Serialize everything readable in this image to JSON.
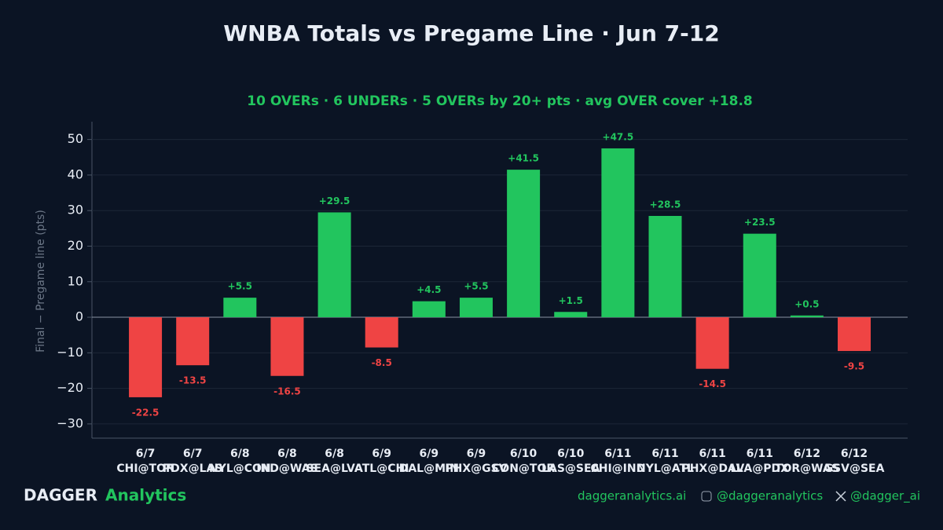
{
  "chart_data": {
    "type": "bar",
    "title": "WNBA Totals vs Pregame Line · Jun 7-12",
    "subtitle": "10 OVERs · 6 UNDERs · 5 OVERs by 20+ pts · avg OVER cover +18.8",
    "y_label": "Final − Pregame line (pts)",
    "categories": [
      "6/7",
      "6/7",
      "6/8",
      "6/8",
      "6/8",
      "6/9",
      "6/9",
      "6/9",
      "6/10",
      "6/10",
      "6/11",
      "6/11",
      "6/11",
      "6/11",
      "6/12",
      "6/12"
    ],
    "matchups": [
      "CHI@TOR",
      "PDX@LAS",
      "NYL@CON",
      "IND@WAS",
      "SEA@LVA",
      "ATL@CHI",
      "DAL@MIN",
      "PHX@GSV",
      "CON@TOR",
      "LAS@SEA",
      "CHI@IND",
      "NYL@ATL",
      "PHX@DAL",
      "LVA@PDX",
      "TOR@WAS",
      "GSV@SEA"
    ],
    "values": [
      -22.5,
      -13.5,
      5.5,
      -16.5,
      29.5,
      -8.5,
      4.5,
      5.5,
      41.5,
      1.5,
      47.5,
      28.5,
      -14.5,
      23.5,
      0.5,
      -9.5
    ],
    "value_labels": [
      "-22.5",
      "-13.5",
      "+5.5",
      "-16.5",
      "+29.5",
      "-8.5",
      "+4.5",
      "+5.5",
      "+41.5",
      "+1.5",
      "+47.5",
      "+28.5",
      "-14.5",
      "+23.5",
      "+0.5",
      "-9.5"
    ],
    "over_color": "#22c55e",
    "under_color": "#ef4444",
    "ylim": [
      -34,
      55
    ],
    "yticks": [
      {
        "value": -30,
        "label": "−30"
      },
      {
        "value": -20,
        "label": "−20"
      },
      {
        "value": -10,
        "label": "−10"
      },
      0,
      10,
      20,
      30,
      40,
      50
    ],
    "grid": true
  },
  "footer": {
    "brand": "DAGGER",
    "brand_accent": "Analytics",
    "site": "daggeranalytics.ai",
    "instagram": "@daggeranalytics",
    "x": "@dagger_ai"
  }
}
